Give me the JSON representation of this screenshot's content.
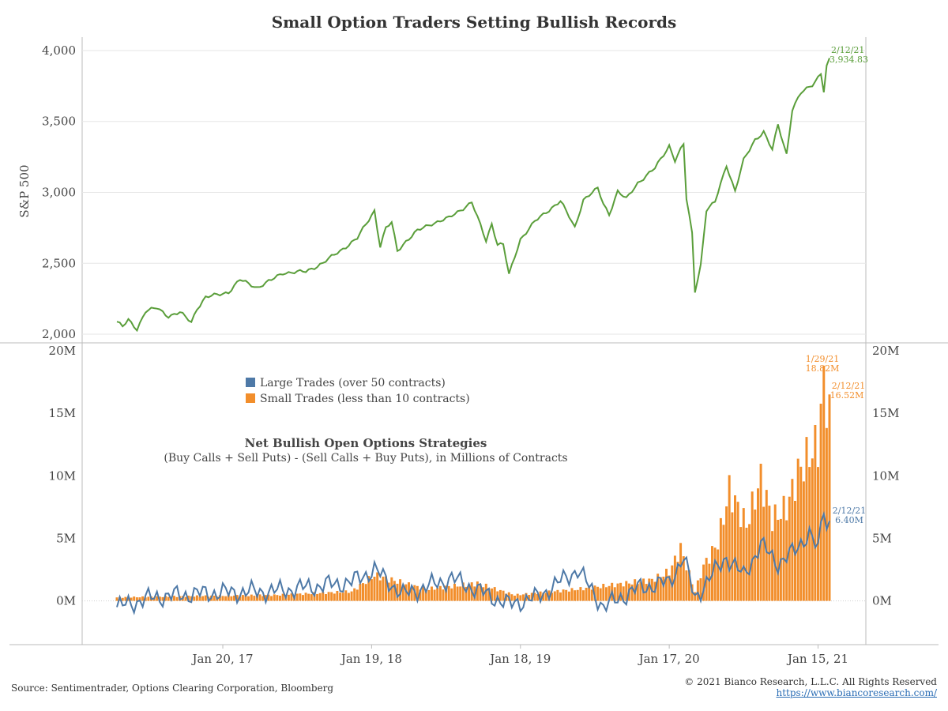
{
  "title": "Small Option Traders Setting Bullish Records",
  "source": "Source: Sentimentrader, Options Clearing Corporation, Bloomberg",
  "copyright": "© 2021 Bianco Research, L.L.C. All Rights Reserved",
  "website": "https://www.biancoresearch.com/",
  "colors": {
    "sp500": "#5a9e3a",
    "large": "#4e79a7",
    "small": "#f28e2b",
    "grid": "#e6e6e6",
    "axis": "#bbbbbb"
  },
  "chart_data": [
    {
      "type": "line",
      "title": "",
      "ylabel": "S&P 500",
      "ylim": [
        1950,
        4050
      ],
      "yticks": [
        2000,
        2500,
        3000,
        3500,
        4000
      ],
      "ytick_labels": [
        "2,000",
        "2,500",
        "3,000",
        "3,500",
        "4,000"
      ],
      "series": [
        {
          "name": "S&P 500",
          "anchors": [
            [
              "2016-05-06",
              2088
            ],
            [
              "2016-05-20",
              2052
            ],
            [
              "2016-06-03",
              2099
            ],
            [
              "2016-06-24",
              2037
            ],
            [
              "2016-07-15",
              2162
            ],
            [
              "2016-08-12",
              2184
            ],
            [
              "2016-09-09",
              2128
            ],
            [
              "2016-10-07",
              2153
            ],
            [
              "2016-11-04",
              2085
            ],
            [
              "2016-11-18",
              2182
            ],
            [
              "2016-12-09",
              2260
            ],
            [
              "2017-01-06",
              2277
            ],
            [
              "2017-02-03",
              2297
            ],
            [
              "2017-03-03",
              2383
            ],
            [
              "2017-04-14",
              2329
            ],
            [
              "2017-05-19",
              2381
            ],
            [
              "2017-06-16",
              2433
            ],
            [
              "2017-08-11",
              2441
            ],
            [
              "2017-09-22",
              2502
            ],
            [
              "2017-11-03",
              2588
            ],
            [
              "2017-12-15",
              2676
            ],
            [
              "2018-01-26",
              2873
            ],
            [
              "2018-02-09",
              2620
            ],
            [
              "2018-02-23",
              2747
            ],
            [
              "2018-03-09",
              2786
            ],
            [
              "2018-03-23",
              2588
            ],
            [
              "2018-04-13",
              2656
            ],
            [
              "2018-05-11",
              2728
            ],
            [
              "2018-06-15",
              2780
            ],
            [
              "2018-07-27",
              2819
            ],
            [
              "2018-08-24",
              2875
            ],
            [
              "2018-09-21",
              2930
            ],
            [
              "2018-10-12",
              2767
            ],
            [
              "2018-10-26",
              2658
            ],
            [
              "2018-11-09",
              2781
            ],
            [
              "2018-11-23",
              2633
            ],
            [
              "2018-12-07",
              2633
            ],
            [
              "2018-12-21",
              2417
            ],
            [
              "2019-01-18",
              2671
            ],
            [
              "2019-02-22",
              2793
            ],
            [
              "2019-04-05",
              2893
            ],
            [
              "2019-04-26",
              2940
            ],
            [
              "2019-05-31",
              2752
            ],
            [
              "2019-06-21",
              2950
            ],
            [
              "2019-07-26",
              3026
            ],
            [
              "2019-08-09",
              2919
            ],
            [
              "2019-08-23",
              2847
            ],
            [
              "2019-09-13",
              3007
            ],
            [
              "2019-10-04",
              2952
            ],
            [
              "2019-11-01",
              3067
            ],
            [
              "2019-12-13",
              3169
            ],
            [
              "2020-01-17",
              3330
            ],
            [
              "2020-01-31",
              3226
            ],
            [
              "2020-02-21",
              3338
            ],
            [
              "2020-02-28",
              2954
            ],
            [
              "2020-03-13",
              2711
            ],
            [
              "2020-03-20",
              2305
            ],
            [
              "2020-04-03",
              2489
            ],
            [
              "2020-04-17",
              2875
            ],
            [
              "2020-05-08",
              2930
            ],
            [
              "2020-06-05",
              3194
            ],
            [
              "2020-06-26",
              3009
            ],
            [
              "2020-07-17",
              3225
            ],
            [
              "2020-08-14",
              3373
            ],
            [
              "2020-09-04",
              3427
            ],
            [
              "2020-09-25",
              3298
            ],
            [
              "2020-10-09",
              3477
            ],
            [
              "2020-10-30",
              3270
            ],
            [
              "2020-11-13",
              3585
            ],
            [
              "2020-12-04",
              3699
            ],
            [
              "2020-12-31",
              3756
            ],
            [
              "2021-01-22",
              3841
            ],
            [
              "2021-01-29",
              3714
            ],
            [
              "2021-02-05",
              3886
            ],
            [
              "2021-02-12",
              3935
            ]
          ]
        }
      ],
      "annotation": {
        "date": "2/12/21",
        "value": "3,934.83"
      }
    },
    {
      "type": "bar",
      "title": "Net Bullish Open Options Strategies",
      "subtitle": "(Buy Calls + Sell Puts) - (Sell Calls + Buy Puts), in Millions of Contracts",
      "ylim": [
        -3.5,
        20.5
      ],
      "yticks": [
        0,
        5,
        10,
        15,
        20
      ],
      "ytick_labels": [
        "0M",
        "5M",
        "10M",
        "15M",
        "20M"
      ],
      "x_range": [
        "2016-05-06",
        "2021-02-12"
      ],
      "xticks": [
        "2017-01-20",
        "2018-01-19",
        "2019-01-18",
        "2020-01-17",
        "2021-01-15"
      ],
      "xtick_labels": [
        "Jan 20, 17",
        "Jan 19, 18",
        "Jan 18, 19",
        "Jan 17, 20",
        "Jan 15, 21"
      ],
      "legend_position": "top-left",
      "series": [
        {
          "name": "Small Trades (less than 10 contracts)",
          "mark": "bar",
          "anchors": [
            [
              "2016-05-06",
              0.3
            ],
            [
              "2016-11-04",
              0.4
            ],
            [
              "2017-06-02",
              0.5
            ],
            [
              "2017-12-01",
              0.8
            ],
            [
              "2018-01-26",
              2.2
            ],
            [
              "2018-06-01",
              1.0
            ],
            [
              "2018-10-05",
              1.5
            ],
            [
              "2019-01-04",
              0.5
            ],
            [
              "2019-06-07",
              1.0
            ],
            [
              "2019-10-04",
              1.5
            ],
            [
              "2019-12-06",
              1.8
            ],
            [
              "2020-01-17",
              2.5
            ],
            [
              "2020-02-14",
              4.5
            ],
            [
              "2020-03-20",
              0.8
            ],
            [
              "2020-04-10",
              3.0
            ],
            [
              "2020-05-15",
              5.0
            ],
            [
              "2020-06-12",
              9.5
            ],
            [
              "2020-07-24",
              6.5
            ],
            [
              "2020-08-28",
              10.5
            ],
            [
              "2020-09-25",
              7.0
            ],
            [
              "2020-10-30",
              8.0
            ],
            [
              "2020-11-27",
              11.0
            ],
            [
              "2020-12-24",
              12.5
            ],
            [
              "2021-01-15",
              13.5
            ],
            [
              "2021-01-29",
              18.8
            ],
            [
              "2021-02-12",
              16.5
            ]
          ],
          "annotations": [
            {
              "date": "1/29/21",
              "value": "18.82M"
            },
            {
              "date": "2/12/21",
              "value": "16.52M"
            }
          ]
        },
        {
          "name": "Large Trades (over 50 contracts)",
          "mark": "line",
          "anchors": [
            [
              "2016-05-06",
              -0.5
            ],
            [
              "2016-08-05",
              0.3
            ],
            [
              "2016-12-02",
              0.6
            ],
            [
              "2017-06-02",
              0.8
            ],
            [
              "2017-12-01",
              1.5
            ],
            [
              "2018-01-26",
              2.5
            ],
            [
              "2018-04-06",
              0.5
            ],
            [
              "2018-08-03",
              1.8
            ],
            [
              "2018-12-21",
              -0.3
            ],
            [
              "2019-03-01",
              0.3
            ],
            [
              "2019-06-07",
              2.5
            ],
            [
              "2019-08-09",
              -0.5
            ],
            [
              "2019-11-01",
              1.0
            ],
            [
              "2020-01-17",
              1.5
            ],
            [
              "2020-02-21",
              3.5
            ],
            [
              "2020-03-20",
              0.2
            ],
            [
              "2020-04-17",
              1.5
            ],
            [
              "2020-06-05",
              3.5
            ],
            [
              "2020-07-17",
              2.0
            ],
            [
              "2020-08-28",
              4.5
            ],
            [
              "2020-10-09",
              3.0
            ],
            [
              "2020-11-20",
              4.0
            ],
            [
              "2020-12-24",
              5.5
            ],
            [
              "2021-01-15",
              4.0
            ],
            [
              "2021-01-29",
              7.5
            ],
            [
              "2021-02-05",
              6.0
            ],
            [
              "2021-02-12",
              6.4
            ]
          ],
          "annotation": {
            "date": "2/12/21",
            "value": "6.40M"
          }
        }
      ]
    }
  ]
}
